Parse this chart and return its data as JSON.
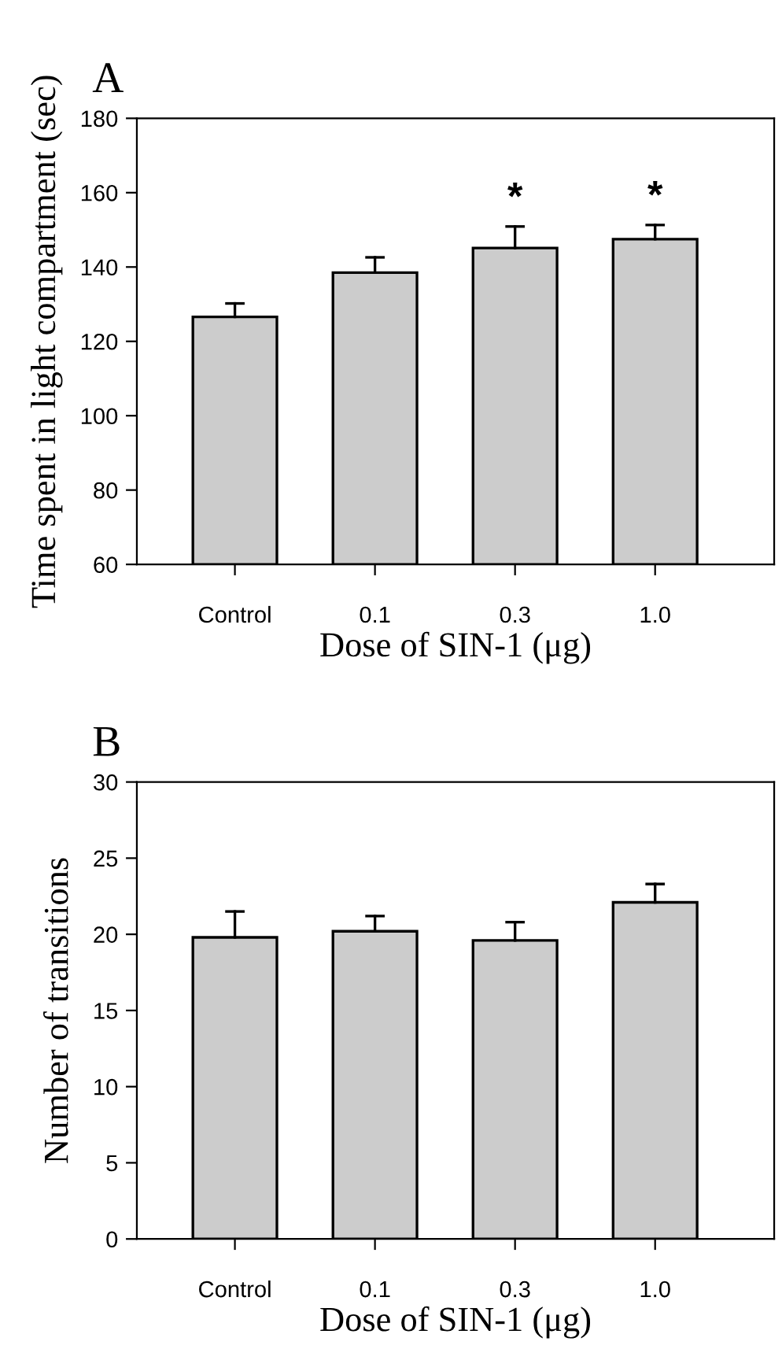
{
  "chart_data": [
    {
      "type": "bar",
      "title": "A",
      "xlabel": "Dose of SIN-1 (μg)",
      "ylabel": "Time spent in light compartment (sec)",
      "categories": [
        "Control",
        "0.1",
        "0.3",
        "1.0"
      ],
      "series": [
        {
          "color": "#cccccc",
          "values": [
            126.6,
            138.5,
            145.1,
            147.5
          ],
          "errors": [
            [
              126.6,
              130.2
            ],
            [
              138.5,
              142.6
            ],
            [
              145.1,
              150.9
            ],
            [
              147.5,
              151.3
            ]
          ]
        }
      ],
      "ylim": [
        60,
        180
      ],
      "yticks": [
        60,
        80,
        100,
        120,
        140,
        160,
        180
      ],
      "grid": false,
      "legend": false,
      "annotations": [
        {
          "text": "*",
          "x": "0.3",
          "y": 150.9
        },
        {
          "text": "*",
          "x": "1.0",
          "y": 151.3
        }
      ]
    },
    {
      "type": "bar",
      "title": "B",
      "xlabel": "Dose of SIN-1 (μg)",
      "ylabel": "Number of transitions",
      "categories": [
        "Control",
        "0.1",
        "0.3",
        "1.0"
      ],
      "series": [
        {
          "color": "#cccccc",
          "values": [
            19.8,
            20.2,
            19.6,
            22.1
          ],
          "errors": [
            [
              19.8,
              21.5
            ],
            [
              20.2,
              21.2
            ],
            [
              19.6,
              20.8
            ],
            [
              22.1,
              23.3
            ]
          ]
        }
      ],
      "ylim": [
        0,
        30
      ],
      "yticks": [
        0,
        5,
        10,
        15,
        20,
        25,
        30
      ],
      "grid": false,
      "legend": false
    }
  ]
}
